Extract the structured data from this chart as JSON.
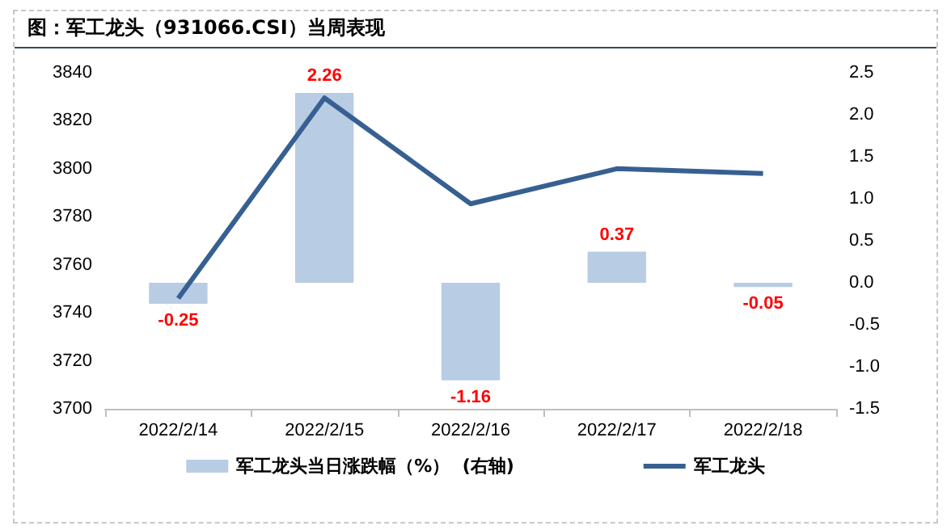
{
  "chart_data": {
    "type": "bar",
    "title": "图：军工龙头（931066.CSI）当周表现",
    "categories": [
      "2022/2/14",
      "2022/2/15",
      "2022/2/16",
      "2022/2/17",
      "2022/2/18"
    ],
    "series": [
      {
        "name": "军工龙头当日涨跌幅（%）  (右轴)",
        "axis": "y2",
        "color": "#b8cce4",
        "values": [
          -0.25,
          2.26,
          -1.16,
          0.37,
          -0.05
        ],
        "value_labels": [
          "-0.25",
          "2.26",
          "-1.16",
          "0.37",
          "-0.05"
        ]
      },
      {
        "name": "军工龙头",
        "type": "line",
        "color": "#376092",
        "values": [
          3746,
          3829.5,
          3785.4,
          3800,
          3798
        ]
      }
    ],
    "ylim": [
      3700,
      3840
    ],
    "yticks": [
      3700,
      3720,
      3740,
      3760,
      3780,
      3800,
      3820,
      3840
    ],
    "y2lim": [
      -1.5,
      2.5
    ],
    "y2ticks": [
      {
        "value": -1.5,
        "label": "-1.5"
      },
      {
        "value": -1,
        "label": "-1.0"
      },
      {
        "value": -0.5,
        "label": "-0.5"
      },
      {
        "value": 0,
        "label": "0.0"
      },
      {
        "value": 0.5,
        "label": "0.5"
      },
      {
        "value": 1,
        "label": "1.0"
      },
      {
        "value": 1.5,
        "label": "1.5"
      },
      {
        "value": 2,
        "label": "2.0"
      },
      {
        "value": 2.5,
        "label": "2.5"
      }
    ],
    "grid": false,
    "legend": "bottom",
    "marker": "none",
    "line_style": "solid"
  }
}
